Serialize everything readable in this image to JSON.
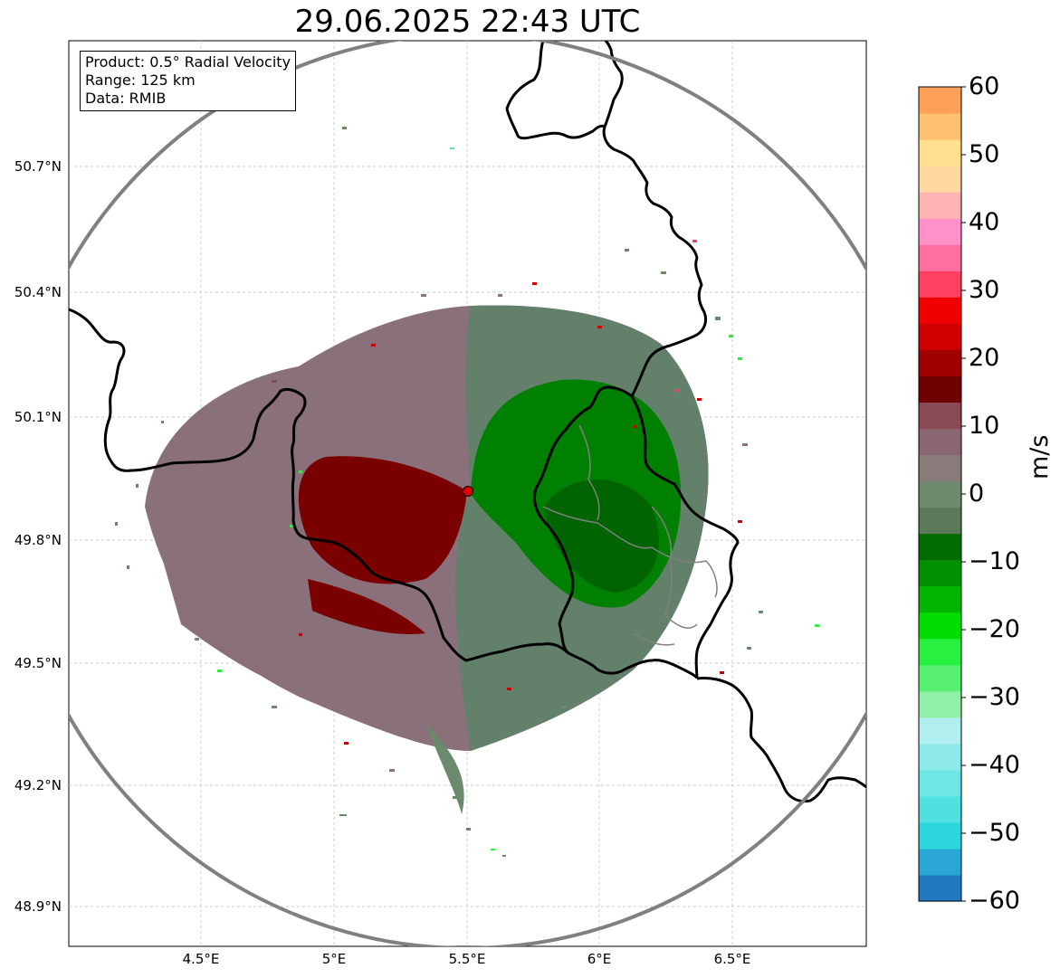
{
  "title": "29.06.2025 22:43 UTC",
  "info": {
    "product": "Product: 0.5° Radial Velocity",
    "range": "Range: 125 km",
    "data": "Data: RMIB"
  },
  "axes": {
    "lat_ticks": [
      "50.7°N",
      "50.4°N",
      "50.1°N",
      "49.8°N",
      "49.5°N",
      "49.2°N",
      "48.9°N"
    ],
    "lon_ticks": [
      "4.5°E",
      "5°E",
      "5.5°E",
      "6°E",
      "6.5°E"
    ]
  },
  "colorbar": {
    "unit": "m/s",
    "ticks": [
      "60",
      "50",
      "40",
      "30",
      "20",
      "10",
      "0",
      "−10",
      "−20",
      "−30",
      "−40",
      "−50",
      "−60"
    ],
    "range": [
      -60,
      60
    ],
    "colors": [
      "#1f78c0",
      "#2aa6d4",
      "#2cd6dc",
      "#50e0e0",
      "#6ee6e6",
      "#8eeaea",
      "#b0eef0",
      "#90f0a8",
      "#58f070",
      "#28f040",
      "#00dd00",
      "#00b400",
      "#009000",
      "#006c00",
      "#5a7a5a",
      "#6e8a6e",
      "#8a7a7a",
      "#8a6670",
      "#8a4a55",
      "#6e0000",
      "#a00000",
      "#d00000",
      "#f00000",
      "#ff4060",
      "#ff70a0",
      "#ff90c8",
      "#ffb4b4",
      "#ffd8a0",
      "#ffe090",
      "#ffc070",
      "#ffa058"
    ]
  },
  "radar": {
    "site_lat": 49.92,
    "site_lon": 5.51,
    "range_km": 125
  },
  "colors": {
    "inbound": "#008000",
    "outbound": "#7a0000",
    "ring": "#808080",
    "border": "#000000",
    "site_marker": "#e00000"
  }
}
